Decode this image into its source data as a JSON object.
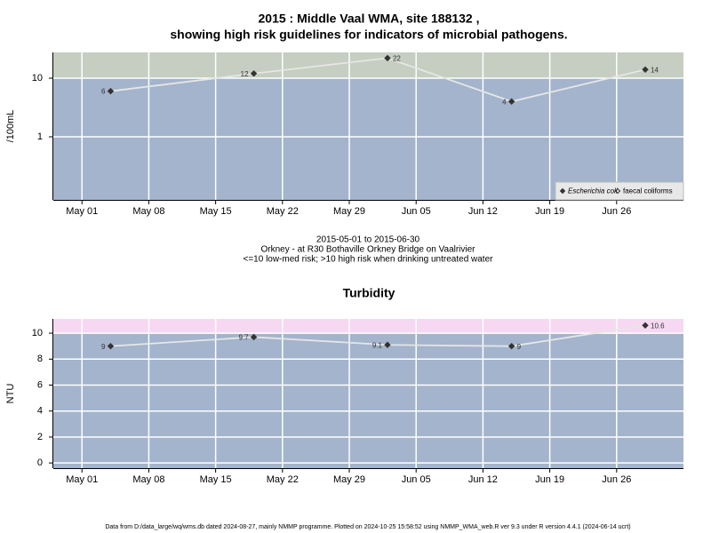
{
  "chart_data": [
    {
      "type": "line",
      "title": [
        "2015 : Middle Vaal WMA, site 188132 ,",
        "showing high risk guidelines for indicators of microbial pathogens."
      ],
      "ylabel": "/100mL",
      "x": [
        "2015-05-04",
        "2015-05-19",
        "2015-06-02",
        "2015-06-15",
        "2015-06-29"
      ],
      "series": [
        {
          "name": "Escherichia coli",
          "color": "#333333",
          "values": [
            6,
            12,
            22,
            4,
            14
          ]
        },
        {
          "name": "faecal coliforms",
          "color": "#333333",
          "values": [
            null,
            null,
            null,
            null,
            null
          ]
        }
      ],
      "xlim": [
        "2015-04-28",
        "2015-07-03"
      ],
      "xticks": [
        {
          "value": "2015-05-01",
          "label": "May 01"
        },
        {
          "value": "2015-05-08",
          "label": "May 08"
        },
        {
          "value": "2015-05-15",
          "label": "May 15"
        },
        {
          "value": "2015-05-22",
          "label": "May 22"
        },
        {
          "value": "2015-05-29",
          "label": "May 29"
        },
        {
          "value": "2015-06-05",
          "label": "Jun 05"
        },
        {
          "value": "2015-06-12",
          "label": "Jun 12"
        },
        {
          "value": "2015-06-19",
          "label": "Jun 19"
        },
        {
          "value": "2015-06-26",
          "label": "Jun 26"
        }
      ],
      "yscale": "log",
      "ylim": [
        0.084,
        27.5
      ],
      "yticks": [
        1,
        10
      ],
      "threshold": 10,
      "band_color": "#c5cec1",
      "grid": true,
      "legend": "lower right",
      "notes": [
        "2015-05-01 to 2015-06-30",
        "Orkney - at R30 Bothaville Orkney Bridge on Vaalrivier",
        "<=10 low-med risk; >10 high risk when drinking untreated water"
      ]
    },
    {
      "type": "line",
      "title": [
        "Turbidity"
      ],
      "ylabel": "NTU",
      "x": [
        "2015-05-04",
        "2015-05-19",
        "2015-06-02",
        "2015-06-15",
        "2015-06-29"
      ],
      "series": [
        {
          "color": "#333333",
          "values": [
            9,
            9.7,
            9.1,
            9,
            10.6
          ]
        }
      ],
      "xlim": [
        "2015-04-28",
        "2015-07-03"
      ],
      "xticks": [
        {
          "value": "2015-05-01",
          "label": "May 01"
        },
        {
          "value": "2015-05-08",
          "label": "May 08"
        },
        {
          "value": "2015-05-15",
          "label": "May 15"
        },
        {
          "value": "2015-05-22",
          "label": "May 22"
        },
        {
          "value": "2015-05-29",
          "label": "May 29"
        },
        {
          "value": "2015-06-05",
          "label": "Jun 05"
        },
        {
          "value": "2015-06-12",
          "label": "Jun 12"
        },
        {
          "value": "2015-06-19",
          "label": "Jun 19"
        },
        {
          "value": "2015-06-26",
          "label": "Jun 26"
        }
      ],
      "ylim": [
        -0.4,
        11.1
      ],
      "yticks": [
        0,
        2,
        4,
        6,
        8,
        10
      ],
      "threshold": 10,
      "band_color": "#f6d8f2",
      "grid": true
    }
  ],
  "footer": "Data from D:/data_large/wq/wms.db dated 2024-08-27, mainly NMMP programme. Plotted on 2024-10-25 15:58:52 using NMMP_WMA_web.R ver 9.3 under R version 4.4.1 (2024-06-14 ucrt)"
}
